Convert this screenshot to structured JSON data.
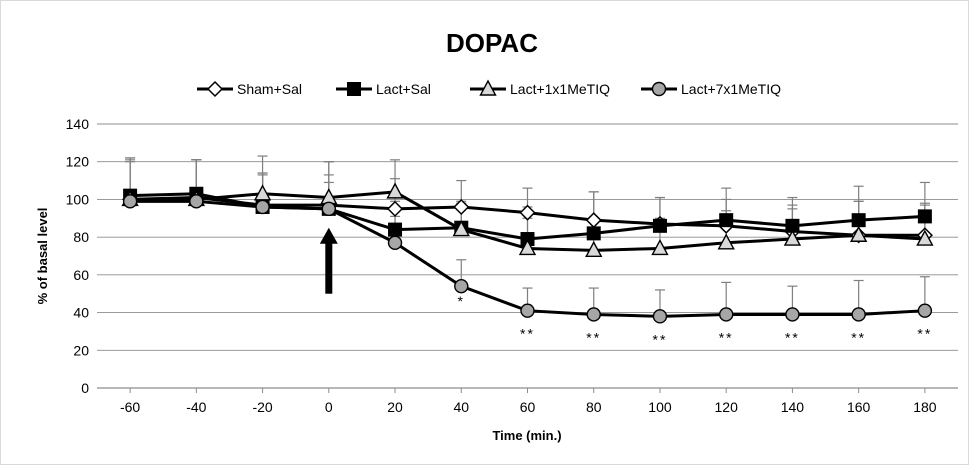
{
  "chart_data": {
    "type": "line",
    "title": "DOPAC",
    "xlabel": "Time (min.)",
    "ylabel": "% of basal level",
    "x": [
      -60,
      -40,
      -20,
      0,
      20,
      40,
      60,
      80,
      100,
      120,
      140,
      160,
      180
    ],
    "xlim": [
      -70,
      190
    ],
    "ylim": [
      0,
      140
    ],
    "yticks": [
      0,
      20,
      40,
      60,
      80,
      100,
      120,
      140
    ],
    "grid": "horizontal",
    "legend_position": "top",
    "series": [
      {
        "name": "Sham+Sal",
        "marker": "diamond-open",
        "values": [
          100,
          101,
          97,
          97,
          95,
          96,
          93,
          89,
          87,
          86,
          83,
          81,
          81
        ],
        "err": [
          20,
          20,
          17,
          16,
          16,
          14,
          13,
          15,
          14,
          14,
          14,
          18,
          17
        ]
      },
      {
        "name": "Lact+Sal",
        "marker": "square-filled",
        "values": [
          102,
          103,
          96,
          95,
          84,
          85,
          79,
          82,
          86,
          89,
          86,
          89,
          91
        ],
        "err": [
          20,
          18,
          17,
          25,
          15,
          14,
          17,
          22,
          15,
          17,
          15,
          18,
          18
        ]
      },
      {
        "name": "Lact+1x1MeTIQ",
        "marker": "triangle-open",
        "values": [
          100,
          100,
          103,
          101,
          104,
          84,
          74,
          73,
          74,
          77,
          79,
          81,
          79
        ],
        "err": [
          22,
          21,
          20,
          19,
          17,
          14,
          16,
          17,
          16,
          17,
          16,
          18,
          18
        ]
      },
      {
        "name": "Lact+7x1MeTIQ",
        "marker": "circle-filled-gray",
        "values": [
          99,
          99,
          96,
          95,
          77,
          54,
          41,
          39,
          38,
          39,
          39,
          39,
          41
        ],
        "err": [
          22,
          22,
          18,
          14,
          14,
          14,
          12,
          14,
          14,
          17,
          15,
          18,
          18
        ]
      }
    ],
    "annotations": [
      {
        "text": "*",
        "x": 40
      },
      {
        "text": "**",
        "x": 60
      },
      {
        "text": "**",
        "x": 80
      },
      {
        "text": "**",
        "x": 100
      },
      {
        "text": "**",
        "x": 120
      },
      {
        "text": "**",
        "x": 140
      },
      {
        "text": "**",
        "x": 160
      },
      {
        "text": "**",
        "x": 180
      }
    ],
    "arrow": {
      "x": 0,
      "direction": "up",
      "y_from": 50,
      "y_to": 85
    },
    "colors": {
      "line": "#000000",
      "grid": "#8c8c8c",
      "circle_fill": "#a6a6a6",
      "error_bar": "#7f7f7f"
    }
  }
}
